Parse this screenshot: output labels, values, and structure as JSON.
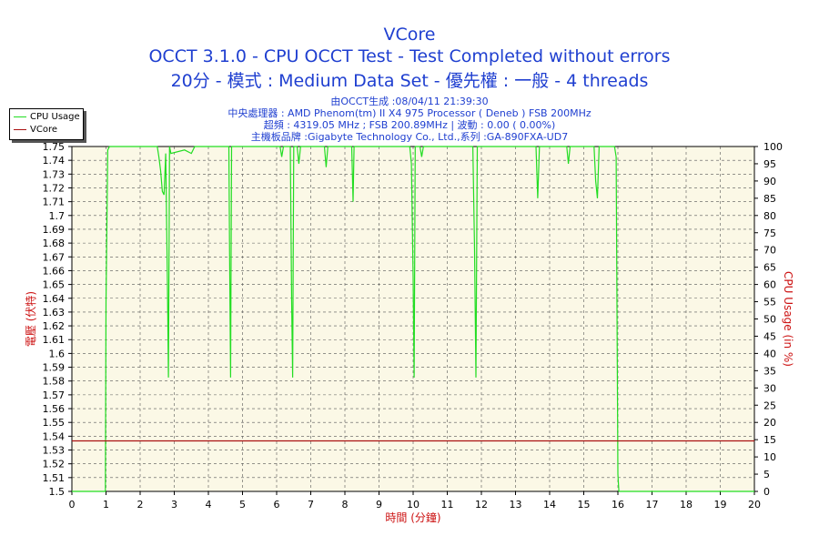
{
  "header": {
    "title": "VCore",
    "subtitle": "OCCT 3.1.0 - CPU OCCT Test - Test Completed without errors",
    "mode_line": "20分 - 模式 : Medium Data Set - 優先權 : 一般 - 4 threads",
    "info_lines": [
      "由OCCT生成 :08/04/11 21:39:30",
      "中央處理器 : AMD Phenom(tm) II X4 975 Processor ( Deneb ) FSB 200MHz",
      "超頻 : 4319.05 MHz ; FSB 200.89MHz | 波動 : 0.00 ( 0.00%)",
      "主機板品牌 :Gigabyte Technology Co., Ltd.,系列 :GA-890FXA-UD7"
    ]
  },
  "chart_data": {
    "type": "line",
    "xlabel": "時間 (分鐘)",
    "ylabel_left": "電壓 (伏特)",
    "ylabel_right": "CPU Usage (in %)",
    "xlim": [
      0,
      20
    ],
    "ylim_left": [
      1.5,
      1.75
    ],
    "ylim_right": [
      0,
      100
    ],
    "x_ticks": [
      0,
      1,
      2,
      3,
      4,
      5,
      6,
      7,
      8,
      9,
      10,
      11,
      12,
      13,
      14,
      15,
      16,
      17,
      18,
      19,
      20
    ],
    "y_ticks_left": [
      1.5,
      1.51,
      1.52,
      1.53,
      1.54,
      1.55,
      1.56,
      1.57,
      1.58,
      1.59,
      1.6,
      1.61,
      1.62,
      1.63,
      1.64,
      1.65,
      1.66,
      1.67,
      1.68,
      1.69,
      1.7,
      1.71,
      1.72,
      1.73,
      1.74,
      1.75
    ],
    "y_ticks_right": [
      0,
      5,
      10,
      15,
      20,
      25,
      30,
      35,
      40,
      45,
      50,
      55,
      60,
      65,
      70,
      75,
      80,
      85,
      90,
      95,
      100
    ],
    "grid": true,
    "legend_position": "top-left",
    "series": [
      {
        "name": "CPU Usage",
        "axis": "right",
        "color": "#22dd22",
        "points": [
          [
            0,
            0
          ],
          [
            0.98,
            0
          ],
          [
            1.0,
            55
          ],
          [
            1.05,
            99
          ],
          [
            1.1,
            100
          ],
          [
            1.5,
            100
          ],
          [
            2.5,
            100
          ],
          [
            2.55,
            97
          ],
          [
            2.6,
            93
          ],
          [
            2.65,
            87
          ],
          [
            2.7,
            86
          ],
          [
            2.75,
            98
          ],
          [
            2.8,
            60
          ],
          [
            2.83,
            33
          ],
          [
            2.86,
            100
          ],
          [
            2.9,
            98
          ],
          [
            3.3,
            99
          ],
          [
            3.5,
            98
          ],
          [
            3.6,
            100
          ],
          [
            4.6,
            100
          ],
          [
            4.62,
            69
          ],
          [
            4.65,
            33
          ],
          [
            4.68,
            100
          ],
          [
            5.6,
            100
          ],
          [
            6.1,
            100
          ],
          [
            6.15,
            97
          ],
          [
            6.2,
            100
          ],
          [
            6.4,
            100
          ],
          [
            6.44,
            55
          ],
          [
            6.47,
            33
          ],
          [
            6.5,
            100
          ],
          [
            6.6,
            100
          ],
          [
            6.65,
            95
          ],
          [
            6.7,
            100
          ],
          [
            7.4,
            100
          ],
          [
            7.45,
            94
          ],
          [
            7.5,
            100
          ],
          [
            8.2,
            100
          ],
          [
            8.24,
            84
          ],
          [
            8.27,
            100
          ],
          [
            9.5,
            100
          ],
          [
            9.9,
            100
          ],
          [
            9.95,
            95
          ],
          [
            10.0,
            62
          ],
          [
            10.03,
            33
          ],
          [
            10.06,
            100
          ],
          [
            10.2,
            100
          ],
          [
            10.25,
            97
          ],
          [
            10.3,
            100
          ],
          [
            11.75,
            100
          ],
          [
            11.8,
            70
          ],
          [
            11.84,
            33
          ],
          [
            11.88,
            100
          ],
          [
            13.6,
            100
          ],
          [
            13.65,
            85
          ],
          [
            13.7,
            100
          ],
          [
            14.5,
            100
          ],
          [
            14.55,
            95
          ],
          [
            14.6,
            100
          ],
          [
            15.3,
            100
          ],
          [
            15.35,
            90
          ],
          [
            15.4,
            85
          ],
          [
            15.45,
            100
          ],
          [
            15.9,
            100
          ],
          [
            15.95,
            97
          ],
          [
            16.0,
            5
          ],
          [
            16.03,
            0
          ],
          [
            16.06,
            0
          ],
          [
            20,
            0
          ]
        ]
      },
      {
        "name": "VCore",
        "axis": "left",
        "color": "#aa1111",
        "points": [
          [
            0,
            1.5366
          ],
          [
            20,
            1.5366
          ]
        ]
      }
    ]
  }
}
